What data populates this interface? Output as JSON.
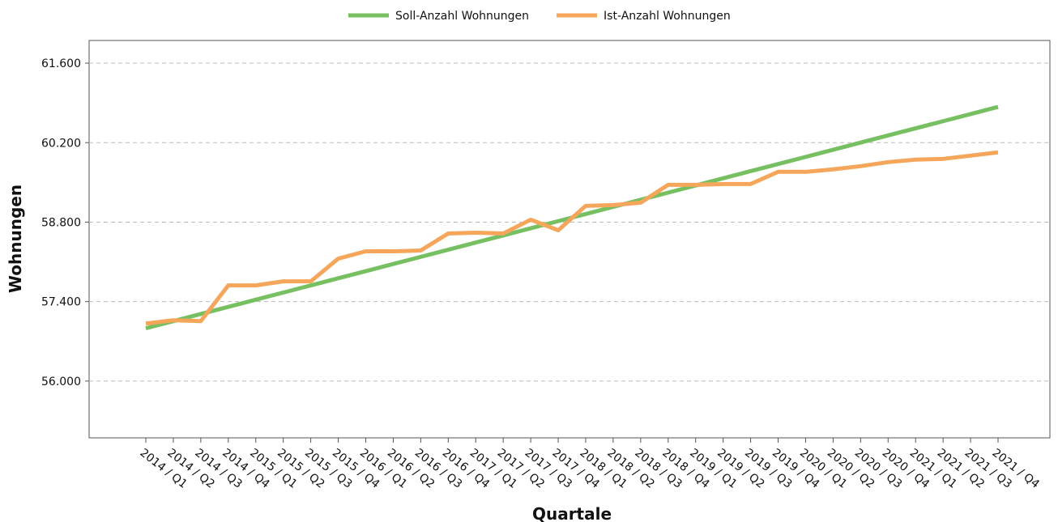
{
  "chart_data": {
    "type": "line",
    "xlabel": "Quartale",
    "ylabel": "Wohnungen",
    "categories": [
      "2014 / Q1",
      "2014 / Q2",
      "2014 / Q3",
      "2014 / Q4",
      "2015 / Q1",
      "2015 / Q2",
      "2015 / Q3",
      "2015 / Q4",
      "2016 / Q1",
      "2016 / Q2",
      "2016 / Q3",
      "2016 / Q4",
      "2017 / Q1",
      "2017 / Q2",
      "2017 / Q3",
      "2017 / Q4",
      "2018 / Q1",
      "2018 / Q2",
      "2018 / Q3",
      "2018 / Q4",
      "2019 / Q1",
      "2019 / Q2",
      "2019 / Q3",
      "2019 / Q4",
      "2020 / Q1",
      "2020 / Q2",
      "2020 / Q3",
      "2020 / Q4",
      "2021 / Q1",
      "2021 / Q2",
      "2021 / Q3",
      "2021 / Q4"
    ],
    "series": [
      {
        "name": "Soll-Anzahl Wohnungen",
        "color": "#77c062",
        "values": [
          56930,
          57056,
          57182,
          57307,
          57433,
          57559,
          57685,
          57811,
          57936,
          58062,
          58188,
          58314,
          58440,
          58565,
          58691,
          58817,
          58943,
          59069,
          59194,
          59320,
          59446,
          59572,
          59698,
          59823,
          59949,
          60075,
          60201,
          60327,
          60452,
          60578,
          60704,
          60830
        ]
      },
      {
        "name": "Ist-Anzahl Wohnungen",
        "color": "#f5a65b",
        "values": [
          57014,
          57071,
          57057,
          57686,
          57686,
          57757,
          57757,
          58157,
          58286,
          58286,
          58300,
          58600,
          58614,
          58600,
          58843,
          58657,
          59086,
          59100,
          59143,
          59457,
          59457,
          59471,
          59471,
          59686,
          59686,
          59729,
          59786,
          59857,
          59900,
          59914,
          59971,
          60029
        ]
      }
    ],
    "ylim": [
      55000,
      62000
    ],
    "yticks": [
      {
        "value": 56000,
        "label": "56.000"
      },
      {
        "value": 57400,
        "label": "57.400"
      },
      {
        "value": 58800,
        "label": "58.800"
      },
      {
        "value": 60200,
        "label": "60.200"
      },
      {
        "value": 61600,
        "label": "61.600"
      }
    ],
    "grid": true,
    "legend": "top"
  }
}
